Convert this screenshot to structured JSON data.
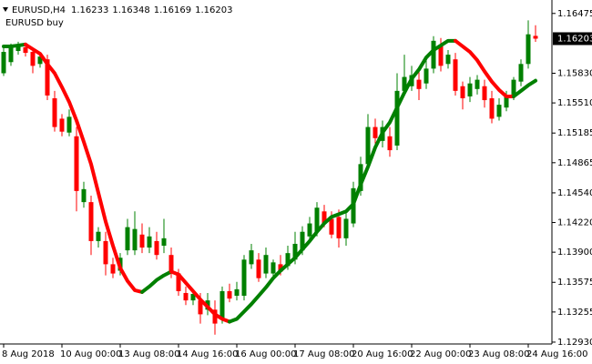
{
  "chart_data": {
    "type": "candlestick",
    "title": "EURUSD,H4",
    "categories": [
      "8 Aug 2018",
      null,
      null,
      null,
      null,
      null,
      null,
      null,
      "10 Aug 00:00",
      null,
      null,
      null,
      null,
      null,
      null,
      null,
      "13 Aug 08:00",
      null,
      null,
      null,
      null,
      null,
      null,
      null,
      "14 Aug 16:00",
      null,
      null,
      null,
      null,
      null,
      null,
      null,
      "16 Aug 00:00",
      null,
      null,
      null,
      null,
      null,
      null,
      null,
      "17 Aug 08:00",
      null,
      null,
      null,
      null,
      null,
      null,
      null,
      "20 Aug 16:00",
      null,
      null,
      null,
      null,
      null,
      null,
      null,
      "22 Aug 00:00",
      null,
      null,
      null,
      null,
      null,
      null,
      null,
      "23 Aug 08:00",
      null,
      null,
      null,
      null,
      null,
      null,
      null,
      "24 Aug 16:00",
      null
    ],
    "open": [
      1.1583,
      1.1595,
      1.1607,
      1.1611,
      1.1606,
      1.1593,
      1.1598,
      1.1556,
      1.1534,
      1.1519,
      1.1515,
      1.1444,
      1.1444,
      1.1402,
      1.1402,
      1.1377,
      1.137,
      1.1392,
      1.1392,
      1.1409,
      1.1395,
      1.1402,
      1.1397,
      1.1387,
      1.1367,
      1.1346,
      1.1338,
      1.1338,
      1.1328,
      1.1328,
      1.1318,
      1.1348,
      1.1343,
      1.1343,
      1.1377,
      1.1382,
      1.1367,
      1.1367,
      1.1377,
      1.1375,
      1.1382,
      1.1392,
      1.1407,
      1.1412,
      1.1434,
      1.1426,
      1.1428,
      1.1405,
      1.1421,
      1.1456,
      1.1485,
      1.1525,
      1.151,
      1.1515,
      1.1505,
      1.1564,
      1.1569,
      1.1576,
      1.1572,
      1.1588,
      1.1613,
      1.1593,
      1.1598,
      1.1569,
      1.1558,
      1.1566,
      1.1569,
      1.1556,
      1.1536,
      1.1546,
      1.1559,
      1.1574,
      1.1593,
      1.16233
    ],
    "high": [
      1.1611,
      1.1615,
      1.1617,
      1.1615,
      1.1611,
      1.1605,
      1.1603,
      1.1564,
      1.1539,
      1.1544,
      1.1525,
      1.1466,
      1.1451,
      1.1417,
      1.1412,
      1.1384,
      1.1389,
      1.1426,
      1.1434,
      1.1421,
      1.1417,
      1.1412,
      1.1426,
      1.1395,
      1.1372,
      1.1353,
      1.135,
      1.1346,
      1.1346,
      1.1338,
      1.1353,
      1.1356,
      1.1358,
      1.1387,
      1.1399,
      1.1389,
      1.1395,
      1.1382,
      1.1387,
      1.1397,
      1.1412,
      1.1418,
      1.1428,
      1.1444,
      1.1441,
      1.1434,
      1.1436,
      1.1434,
      1.1466,
      1.1493,
      1.1539,
      1.1534,
      1.1532,
      1.1525,
      1.1583,
      1.1603,
      1.1591,
      1.1585,
      1.1601,
      1.1623,
      1.1621,
      1.1608,
      1.1605,
      1.1574,
      1.1579,
      1.1581,
      1.1576,
      1.1564,
      1.1556,
      1.1564,
      1.1579,
      1.1598,
      1.164,
      1.16348
    ],
    "low": [
      1.158,
      1.1591,
      1.1603,
      1.1601,
      1.1583,
      1.1589,
      1.1554,
      1.152,
      1.1515,
      1.1515,
      1.1434,
      1.1438,
      1.1387,
      1.1395,
      1.1365,
      1.1362,
      1.1365,
      1.1387,
      1.1387,
      1.1389,
      1.1389,
      1.1382,
      1.1389,
      1.1362,
      1.1343,
      1.1333,
      1.1333,
      1.1313,
      1.1322,
      1.1301,
      1.1313,
      1.1336,
      1.1338,
      1.1338,
      1.1372,
      1.1358,
      1.1362,
      1.1362,
      1.1365,
      1.1371,
      1.1377,
      1.1387,
      1.1402,
      1.1407,
      1.1417,
      1.1405,
      1.1395,
      1.1397,
      1.1417,
      1.1451,
      1.148,
      1.1507,
      1.1503,
      1.1493,
      1.15,
      1.1559,
      1.1564,
      1.1554,
      1.1566,
      1.1583,
      1.1585,
      1.1588,
      1.1559,
      1.1544,
      1.1552,
      1.156,
      1.1546,
      1.1529,
      1.1532,
      1.1542,
      1.1554,
      1.1569,
      1.1588,
      1.16169
    ],
    "close": [
      1.1606,
      1.1611,
      1.1613,
      1.1605,
      1.1591,
      1.1601,
      1.1559,
      1.1525,
      1.152,
      1.1536,
      1.1456,
      1.1458,
      1.1402,
      1.1412,
      1.1377,
      1.1367,
      1.1384,
      1.1417,
      1.1415,
      1.1395,
      1.1407,
      1.1387,
      1.1405,
      1.1367,
      1.1348,
      1.1338,
      1.1345,
      1.1323,
      1.1338,
      1.1313,
      1.1348,
      1.134,
      1.135,
      1.1382,
      1.1392,
      1.1362,
      1.1387,
      1.1379,
      1.1369,
      1.1389,
      1.1399,
      1.1412,
      1.1421,
      1.1438,
      1.1421,
      1.1409,
      1.1405,
      1.1426,
      1.1459,
      1.1485,
      1.1525,
      1.1513,
      1.1525,
      1.15,
      1.1564,
      1.1579,
      1.1581,
      1.1566,
      1.1588,
      1.1618,
      1.1591,
      1.1603,
      1.1564,
      1.1556,
      1.1572,
      1.1576,
      1.1554,
      1.1534,
      1.1549,
      1.1559,
      1.1576,
      1.1593,
      1.1625,
      1.16203
    ],
    "up_color": "#008000",
    "down_color": "#ff0000",
    "series": [
      {
        "name": "EURUSD buy",
        "up_color": "#008000",
        "down_color": "#ff0000",
        "values": [
          1.1612,
          1.1612,
          1.1613,
          1.1614,
          1.1609,
          1.1604,
          1.1593,
          1.1583,
          1.1568,
          1.1552,
          1.1532,
          1.1509,
          1.1485,
          1.1454,
          1.1423,
          1.1397,
          1.1373,
          1.1359,
          1.1349,
          1.1347,
          1.1353,
          1.136,
          1.1365,
          1.1369,
          1.1366,
          1.1357,
          1.1348,
          1.1339,
          1.1331,
          1.1323,
          1.1318,
          1.1315,
          1.1318,
          1.1326,
          1.1334,
          1.1343,
          1.1352,
          1.1362,
          1.137,
          1.1377,
          1.1384,
          1.1393,
          1.1402,
          1.1412,
          1.1421,
          1.1428,
          1.1431,
          1.1434,
          1.1442,
          1.1463,
          1.1482,
          1.1503,
          1.1519,
          1.153,
          1.1546,
          1.1562,
          1.1577,
          1.1587,
          1.16,
          1.1608,
          1.1613,
          1.1618,
          1.1618,
          1.1612,
          1.1606,
          1.1597,
          1.1585,
          1.1574,
          1.1565,
          1.1558,
          1.1558,
          1.1564,
          1.157,
          1.1575
        ]
      }
    ],
    "ylim": [
      1.1291,
      1.1662
    ],
    "yticks": [
      1.16475,
      {
        "value": 1.1583,
        "label": "1.15830"
      },
      {
        "value": 1.1551,
        "label": "1.15510"
      },
      1.15185,
      1.14865,
      {
        "value": 1.1454,
        "label": "1.14540"
      },
      {
        "value": 1.1422,
        "label": "1.14220"
      },
      {
        "value": 1.139,
        "label": "1.13900"
      },
      1.13575,
      1.13255,
      {
        "value": 1.1293,
        "label": "1.12930"
      }
    ],
    "grid": false
  }
}
